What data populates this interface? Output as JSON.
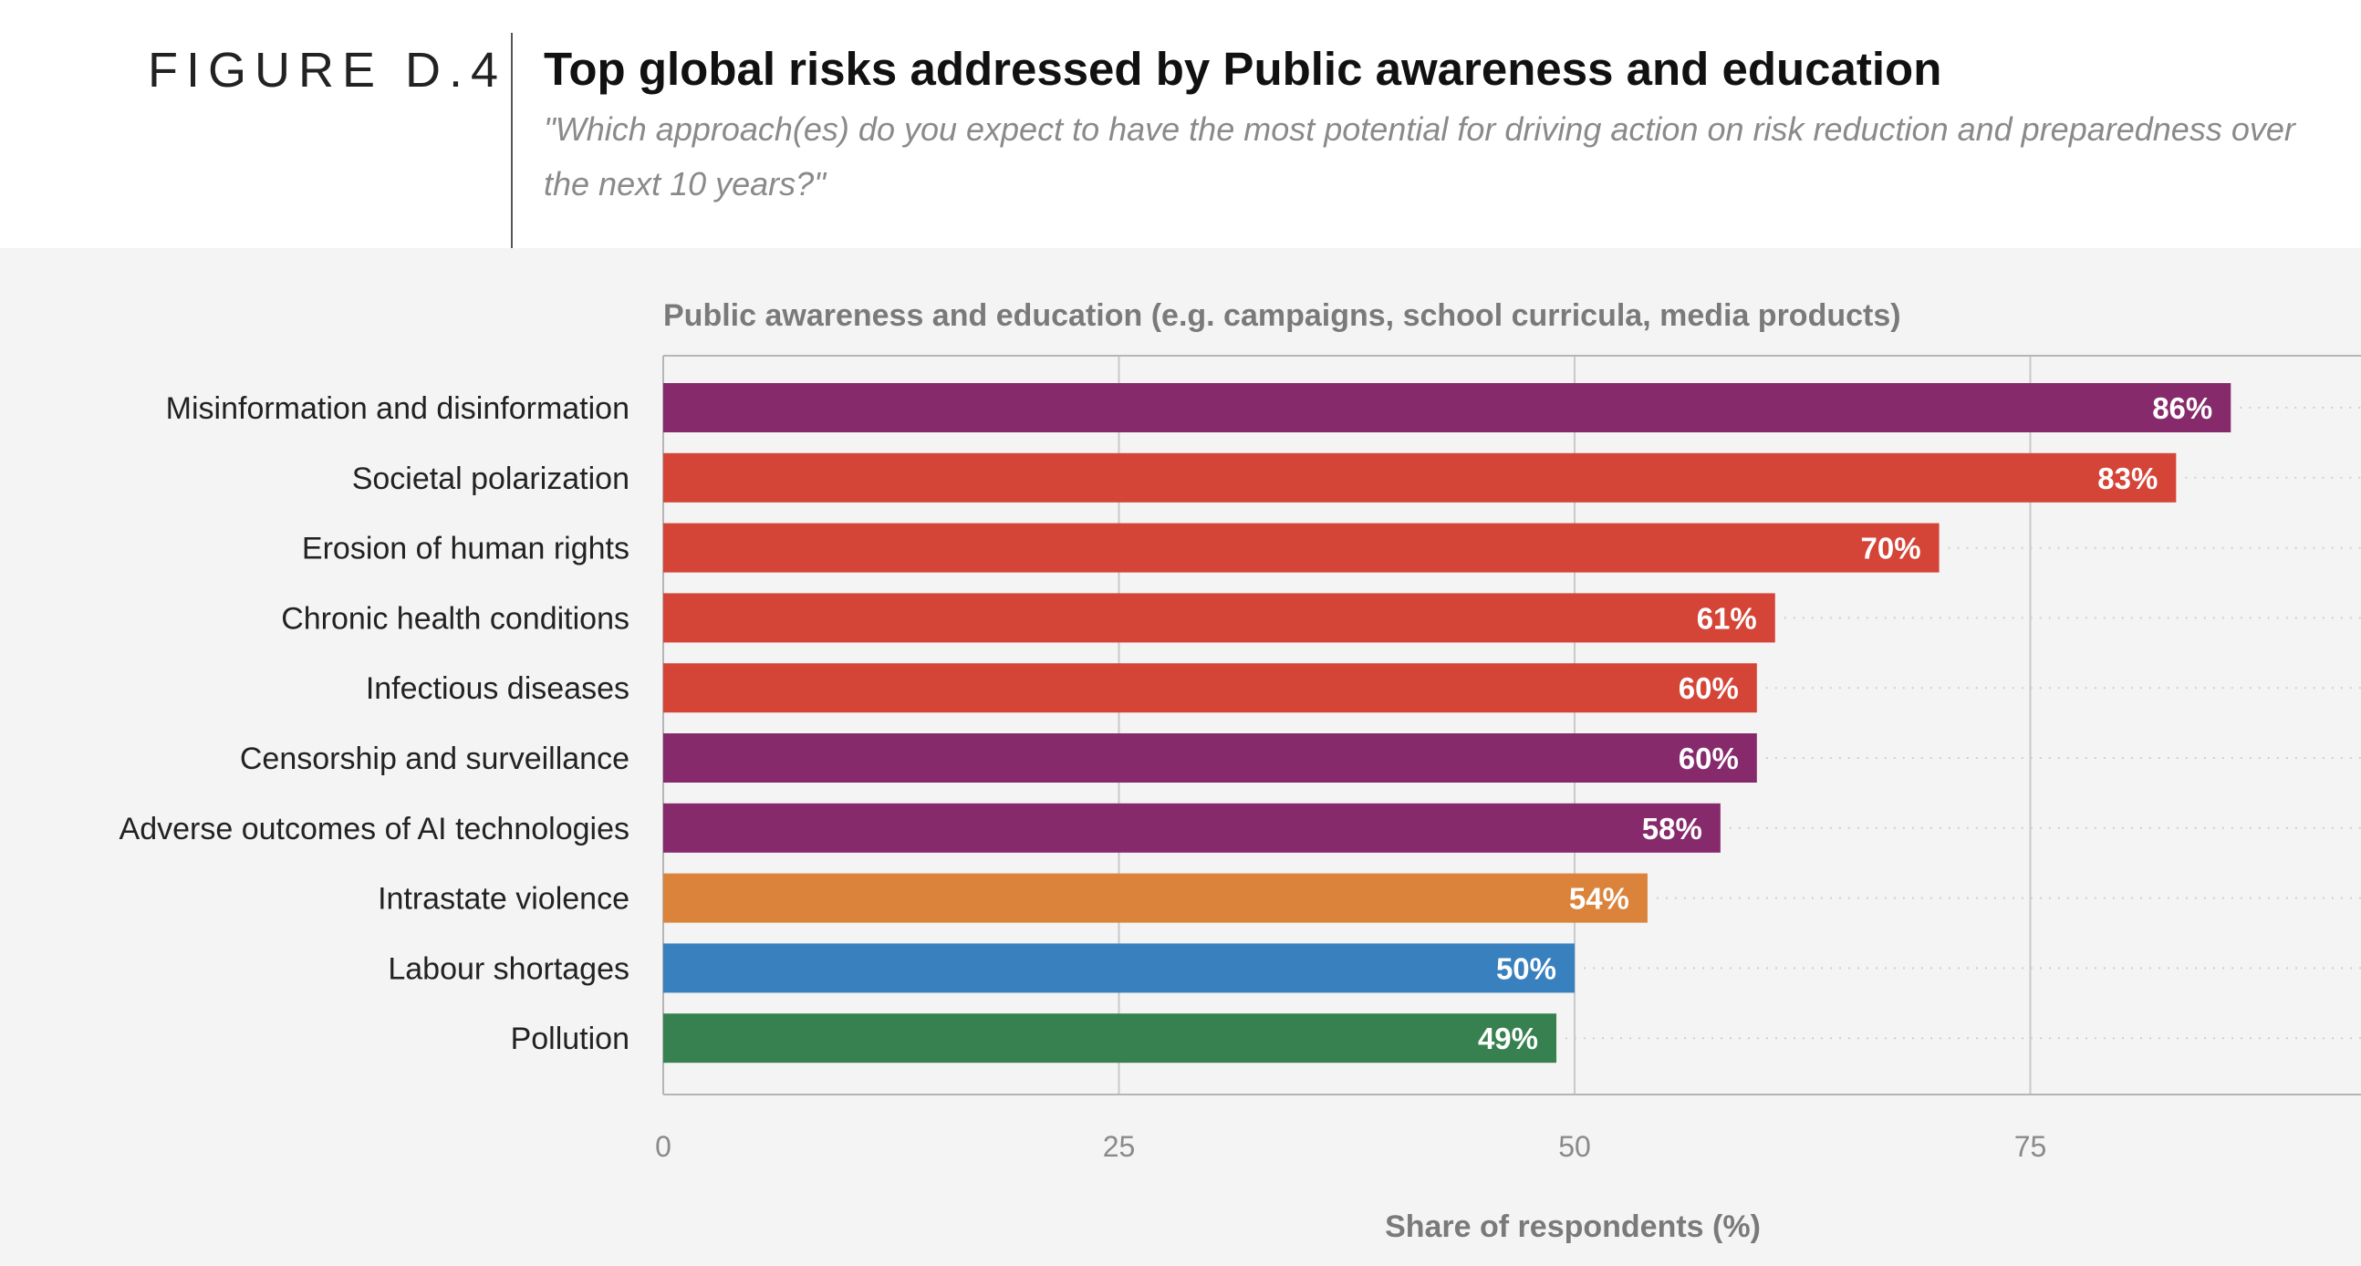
{
  "header": {
    "figure_label": "FIGURE D.4",
    "title": "Top global risks addressed by Public awareness and education",
    "subtitle": "\"Which approach(es) do you expect to have the most potential for driving action on risk reduction and preparedness over the next 10 years?\""
  },
  "chart_data": {
    "type": "bar",
    "orientation": "horizontal",
    "title": "Public awareness and education (e.g. campaigns, school curricula, media products)",
    "xlabel": "Share of respondents (%)",
    "ylabel": "",
    "xlim": [
      0,
      92
    ],
    "x_ticks": [
      0,
      25,
      50,
      75
    ],
    "grid": true,
    "categories": [
      "Misinformation and disinformation",
      "Societal polarization",
      "Erosion of human rights",
      "Chronic health conditions",
      "Infectious diseases",
      "Censorship and surveillance",
      "Adverse outcomes of AI technologies",
      "Intrastate violence",
      "Labour shortages",
      "Pollution"
    ],
    "values": [
      86,
      83,
      70,
      61,
      60,
      60,
      58,
      54,
      50,
      49
    ],
    "value_labels": [
      "86%",
      "83%",
      "70%",
      "61%",
      "60%",
      "60%",
      "58%",
      "54%",
      "50%",
      "49%"
    ],
    "colors": [
      "#862a6b",
      "#d44538",
      "#d44538",
      "#d44538",
      "#d44538",
      "#862a6b",
      "#862a6b",
      "#db833a",
      "#3980bf",
      "#378150"
    ]
  }
}
